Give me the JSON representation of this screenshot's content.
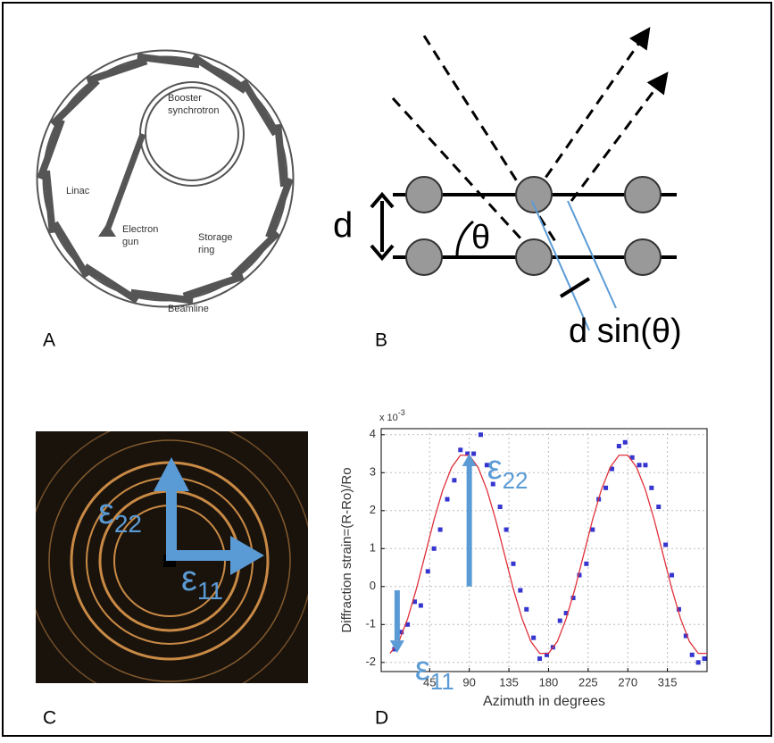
{
  "panels": {
    "a": {
      "label": "A",
      "booster": [
        "Booster",
        "synchrotron"
      ],
      "linac": "Linac",
      "gun": [
        "Electron",
        "gun"
      ],
      "ring": [
        "Storage",
        "ring"
      ],
      "beamline": "Beamline"
    },
    "b": {
      "label": "B",
      "d": "d",
      "theta": "θ",
      "dsin": "d sin(θ)"
    },
    "c": {
      "label": "C",
      "e22": {
        "symbol": "ε",
        "sub": "22"
      },
      "e11": {
        "symbol": "ε",
        "sub": "11"
      }
    },
    "d": {
      "label": "D"
    }
  },
  "chart_data": {
    "type": "scatter",
    "x_label": "Azimuth in degrees",
    "y_label": "Diffraction strain=(R-Ro)/Ro",
    "multiplier": {
      "base": "x 10",
      "exponent": "-3"
    },
    "xlim": [
      -10,
      360
    ],
    "ylim": [
      -2.24,
      4.16
    ],
    "xticks": [
      45,
      90,
      135,
      180,
      225,
      270,
      315
    ],
    "yticks": [
      -2,
      -1,
      0,
      1,
      2,
      3,
      4
    ],
    "grid": true,
    "series": [
      {
        "type": "scatter",
        "color": "#3535d0",
        "x": [
          5,
          13,
          20,
          28,
          35,
          43,
          50,
          57,
          65,
          73,
          80,
          88,
          95,
          103,
          110,
          117,
          125,
          132,
          140,
          148,
          155,
          163,
          170,
          178,
          185,
          193,
          200,
          208,
          215,
          223,
          230,
          237,
          245,
          252,
          260,
          267,
          275,
          283,
          290,
          297,
          305,
          313,
          320,
          328,
          336,
          343,
          350,
          357
        ],
        "values": [
          -1.65,
          -1.2,
          -1.0,
          -0.4,
          -0.5,
          0.4,
          1.0,
          1.5,
          2.3,
          2.8,
          3.6,
          3.5,
          3.5,
          4.0,
          3.2,
          2.7,
          2.1,
          1.5,
          0.6,
          -0.1,
          -0.6,
          -1.35,
          -1.9,
          -1.8,
          -1.6,
          -0.9,
          -0.7,
          -0.3,
          0.3,
          0.6,
          1.5,
          2.3,
          2.6,
          3.1,
          3.7,
          3.8,
          3.4,
          3.2,
          3.2,
          2.6,
          2.1,
          1.1,
          0.3,
          -0.6,
          -1.3,
          -1.8,
          -2.0,
          -1.9
        ]
      },
      {
        "type": "line",
        "color": "#e0303a",
        "x": [
          0,
          10,
          20,
          30,
          40,
          50,
          60,
          70,
          80,
          90,
          100,
          110,
          120,
          130,
          140,
          150,
          160,
          170,
          180,
          190,
          200,
          210,
          220,
          230,
          240,
          250,
          260,
          270,
          280,
          290,
          300,
          310,
          320,
          330,
          340,
          350,
          360
        ],
        "values": [
          -1.76,
          -1.45,
          -0.85,
          -0.06,
          0.85,
          1.76,
          2.55,
          3.14,
          3.46,
          3.46,
          3.14,
          2.55,
          1.76,
          0.85,
          -0.06,
          -0.85,
          -1.45,
          -1.76,
          -1.76,
          -1.45,
          -0.85,
          -0.06,
          0.85,
          1.76,
          2.55,
          3.14,
          3.46,
          3.46,
          3.14,
          2.55,
          1.76,
          0.85,
          -0.06,
          -0.85,
          -1.45,
          -1.76,
          -1.76
        ]
      }
    ],
    "annotations": [
      {
        "symbol": "ε",
        "sub": "22",
        "x": 90,
        "from": 0,
        "to": 3.5
      },
      {
        "symbol": "ε",
        "sub": "11",
        "x": 0,
        "from": -0.1,
        "to": -1.75
      }
    ]
  }
}
